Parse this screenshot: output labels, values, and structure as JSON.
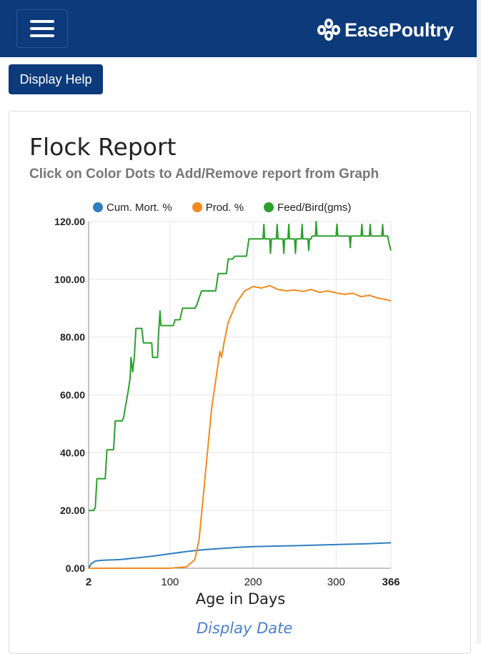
{
  "header": {
    "brand": "EasePoultry",
    "colors": {
      "navbar": "#0d3a7a",
      "brand_text": "#ffffff"
    }
  },
  "toolbar": {
    "help_label": "Display Help"
  },
  "report": {
    "title": "Flock Report",
    "subtitle": "Click on Color Dots to Add/Remove report from Graph",
    "display_date_link": "Display Date"
  },
  "chart_data": {
    "type": "line",
    "xlabel": "Age in Days",
    "ylabel": "",
    "xlim": [
      2,
      366
    ],
    "ylim": [
      0,
      120
    ],
    "x_ticks": [
      2,
      100,
      200,
      300,
      366
    ],
    "y_ticks": [
      "0.00",
      "20.00",
      "40.00",
      "60.00",
      "80.00",
      "100.00",
      "120.00"
    ],
    "grid": true,
    "legend_position": "top",
    "series": [
      {
        "name": "Cum. Mort. %",
        "color": "#2f7ec1",
        "points": [
          [
            2,
            0
          ],
          [
            5,
            1.5
          ],
          [
            10,
            2.5
          ],
          [
            20,
            2.8
          ],
          [
            40,
            3.0
          ],
          [
            60,
            3.6
          ],
          [
            80,
            4.2
          ],
          [
            100,
            5.0
          ],
          [
            120,
            5.8
          ],
          [
            140,
            6.4
          ],
          [
            160,
            6.8
          ],
          [
            180,
            7.2
          ],
          [
            200,
            7.5
          ],
          [
            250,
            7.8
          ],
          [
            300,
            8.2
          ],
          [
            340,
            8.5
          ],
          [
            366,
            8.8
          ]
        ]
      },
      {
        "name": "Prod. %",
        "color": "#f28a1e",
        "points": [
          [
            2,
            0
          ],
          [
            100,
            0
          ],
          [
            120,
            0.5
          ],
          [
            130,
            3
          ],
          [
            135,
            10
          ],
          [
            140,
            25
          ],
          [
            145,
            40
          ],
          [
            150,
            55
          ],
          [
            155,
            65
          ],
          [
            160,
            75
          ],
          [
            162,
            73
          ],
          [
            165,
            78
          ],
          [
            170,
            85
          ],
          [
            180,
            92
          ],
          [
            190,
            96
          ],
          [
            200,
            97.5
          ],
          [
            210,
            97
          ],
          [
            220,
            97.8
          ],
          [
            230,
            96.5
          ],
          [
            240,
            96
          ],
          [
            250,
            96.3
          ],
          [
            260,
            95.8
          ],
          [
            270,
            96.5
          ],
          [
            280,
            95.5
          ],
          [
            290,
            96
          ],
          [
            300,
            95.3
          ],
          [
            310,
            94.8
          ],
          [
            320,
            95.2
          ],
          [
            330,
            94
          ],
          [
            340,
            94.5
          ],
          [
            350,
            93.5
          ],
          [
            360,
            93
          ],
          [
            366,
            92.5
          ]
        ]
      },
      {
        "name": "Feed/Bird(gms)",
        "color": "#2ca02c",
        "points": [
          [
            2,
            20
          ],
          [
            8,
            20
          ],
          [
            10,
            21
          ],
          [
            12,
            31
          ],
          [
            22,
            31
          ],
          [
            24,
            41
          ],
          [
            32,
            41
          ],
          [
            34,
            51
          ],
          [
            42,
            51
          ],
          [
            44,
            52
          ],
          [
            47,
            57
          ],
          [
            50,
            62
          ],
          [
            52,
            66
          ],
          [
            53,
            73
          ],
          [
            55,
            68
          ],
          [
            57,
            73
          ],
          [
            59,
            83
          ],
          [
            66,
            83
          ],
          [
            68,
            78
          ],
          [
            78,
            78
          ],
          [
            79,
            73
          ],
          [
            85,
            73
          ],
          [
            86,
            80
          ],
          [
            88,
            89
          ],
          [
            89,
            84
          ],
          [
            104,
            84
          ],
          [
            106,
            86
          ],
          [
            112,
            86
          ],
          [
            115,
            90
          ],
          [
            130,
            90
          ],
          [
            132,
            91
          ],
          [
            138,
            96
          ],
          [
            155,
            96
          ],
          [
            158,
            102
          ],
          [
            168,
            102
          ],
          [
            170,
            107
          ],
          [
            175,
            107
          ],
          [
            178,
            108
          ],
          [
            192,
            108
          ],
          [
            195,
            114
          ],
          [
            212,
            114
          ],
          [
            213,
            119
          ],
          [
            214,
            114
          ],
          [
            220,
            114
          ],
          [
            221,
            109
          ],
          [
            222,
            114
          ],
          [
            228,
            114
          ],
          [
            229,
            119
          ],
          [
            230,
            114
          ],
          [
            236,
            114
          ],
          [
            237,
            109
          ],
          [
            238,
            114
          ],
          [
            242,
            114
          ],
          [
            243,
            119
          ],
          [
            244,
            114
          ],
          [
            250,
            114
          ],
          [
            251,
            109
          ],
          [
            252,
            114
          ],
          [
            258,
            114
          ],
          [
            259,
            119
          ],
          [
            260,
            114
          ],
          [
            266,
            114
          ],
          [
            267,
            110
          ],
          [
            268,
            114
          ],
          [
            270,
            114
          ],
          [
            271,
            115
          ],
          [
            275,
            115
          ],
          [
            276,
            120
          ],
          [
            277,
            115
          ],
          [
            300,
            115
          ],
          [
            301,
            119
          ],
          [
            302,
            115
          ],
          [
            316,
            115
          ],
          [
            317,
            111
          ],
          [
            318,
            115
          ],
          [
            330,
            115
          ],
          [
            331,
            119
          ],
          [
            332,
            115
          ],
          [
            340,
            115
          ],
          [
            341,
            119
          ],
          [
            342,
            115
          ],
          [
            355,
            115
          ],
          [
            356,
            119
          ],
          [
            357,
            115
          ],
          [
            362,
            115
          ],
          [
            364,
            112
          ],
          [
            366,
            110
          ]
        ]
      }
    ]
  }
}
